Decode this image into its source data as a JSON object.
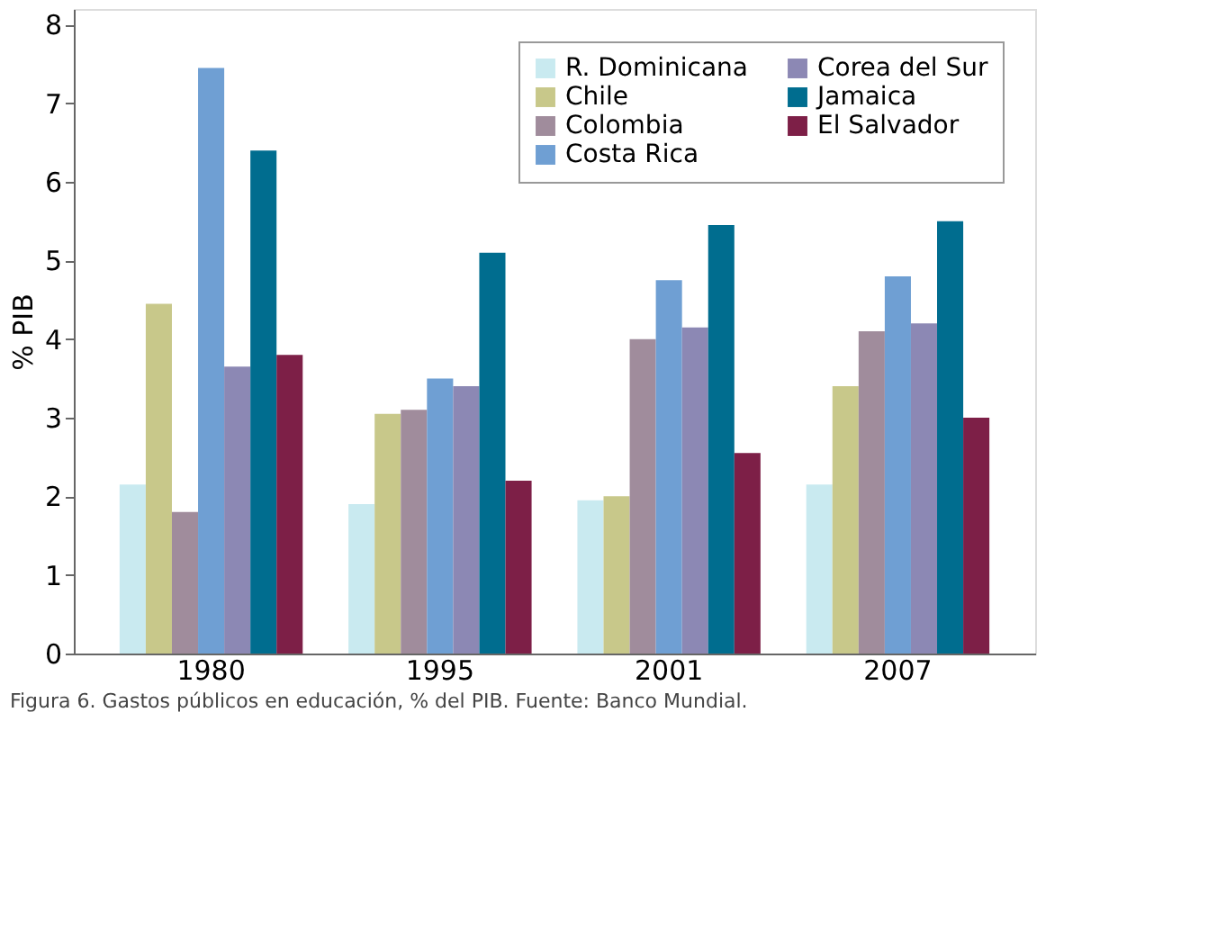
{
  "chart_data": {
    "type": "bar",
    "ylabel": "% PIB",
    "categories": [
      "1980",
      "1995",
      "2001",
      "2007"
    ],
    "series": [
      {
        "name": "R. Dominicana",
        "color": "#c9eaf0",
        "values": [
          2.15,
          1.9,
          1.95,
          2.15
        ]
      },
      {
        "name": "Chile",
        "color": "#c8c88a",
        "values": [
          4.45,
          3.05,
          2.0,
          3.4
        ]
      },
      {
        "name": "Colombia",
        "color": "#a08c9c",
        "values": [
          1.8,
          3.1,
          4.0,
          4.1
        ]
      },
      {
        "name": "Costa Rica",
        "color": "#6f9fd3",
        "values": [
          7.45,
          3.5,
          4.75,
          4.8
        ]
      },
      {
        "name": "Corea del Sur",
        "color": "#8c88b4",
        "values": [
          3.65,
          3.4,
          4.15,
          4.2
        ]
      },
      {
        "name": "Jamaica",
        "color": "#006d8f",
        "values": [
          6.4,
          5.1,
          5.45,
          5.5
        ]
      },
      {
        "name": "El Salvador",
        "color": "#7d1f47",
        "values": [
          3.8,
          2.2,
          2.55,
          3.0
        ]
      }
    ],
    "ylim": [
      0,
      8.2
    ],
    "yticks": [
      0,
      1,
      2,
      3,
      4,
      5,
      6,
      7,
      8
    ],
    "grid": false,
    "legend": "top right",
    "annotations": [
      "Figura 6. Gastos públicos en educación, % del PIB. Fuente: Banco Mundial."
    ]
  }
}
